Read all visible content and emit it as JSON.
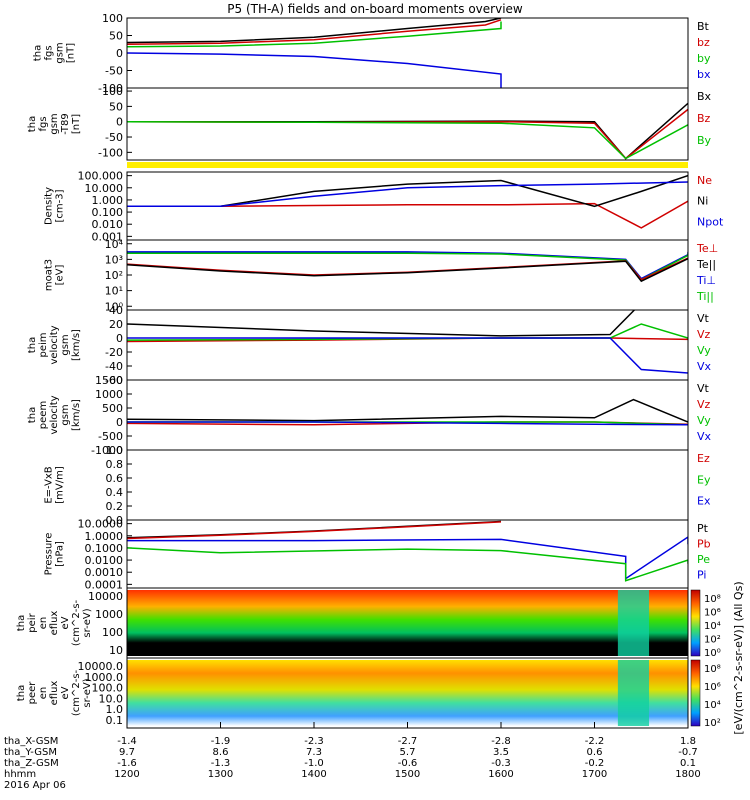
{
  "title": "P5 (TH-A) fields and on-board moments overview",
  "chart_data": {
    "type": "line",
    "title": "P5 (TH-A) fields and on-board moments overview",
    "x_axis": {
      "tick_labels_hhmm": [
        "1200",
        "1300",
        "1400",
        "1500",
        "1600",
        "1700",
        "1800"
      ],
      "date": "2016 Apr 06",
      "label_rows": [
        {
          "label": "tha_X-GSM",
          "values": [
            "-1.4",
            "-1.9",
            "-2.3",
            "-2.7",
            "-2.8",
            "-2.2",
            "1.8"
          ]
        },
        {
          "label": "tha_Y-GSM",
          "values": [
            "9.7",
            "8.6",
            "7.3",
            "5.7",
            "3.5",
            "0.6",
            "-0.7"
          ]
        },
        {
          "label": "tha_Z-GSM",
          "values": [
            "-1.6",
            "-1.3",
            "-1.0",
            "-0.6",
            "-0.3",
            "-0.2",
            "0.1"
          ]
        },
        {
          "label": "hhmm",
          "values": [
            "1200",
            "1300",
            "1400",
            "1500",
            "1600",
            "1700",
            "1800"
          ]
        }
      ]
    },
    "panels": [
      {
        "id": "fgs_gsm",
        "ylabel": [
          "tha",
          "fgs",
          "gsm",
          "[nT]"
        ],
        "ylim": [
          -100,
          100
        ],
        "yticks": [
          "100",
          "50",
          "0",
          "-50",
          "-100"
        ],
        "legend": [
          {
            "name": "Bt",
            "color": "#000000"
          },
          {
            "name": "bz",
            "color": "#d00000"
          },
          {
            "name": "by",
            "color": "#00c000"
          },
          {
            "name": "bx",
            "color": "#0000e0"
          }
        ],
        "series": [
          {
            "name": "Bt",
            "color": "#000000",
            "x": [
              1200,
              1300,
              1400,
              1500,
              1550,
              1600
            ],
            "y": [
              30,
              33,
              45,
              70,
              90,
              100
            ]
          },
          {
            "name": "bz",
            "color": "#d00000",
            "x": [
              1200,
              1300,
              1400,
              1500,
              1550,
              1600
            ],
            "y": [
              25,
              28,
              38,
              62,
              80,
              95
            ]
          },
          {
            "name": "by",
            "color": "#00c000",
            "x": [
              1200,
              1300,
              1400,
              1500,
              1560,
              1600
            ],
            "y": [
              18,
              20,
              28,
              48,
              70,
              90
            ]
          },
          {
            "name": "bx",
            "color": "#0000e0",
            "x": [
              1200,
              1300,
              1400,
              1500,
              1560,
              1600
            ],
            "y": [
              0,
              -3,
              -10,
              -30,
              -60,
              -100
            ]
          }
        ]
      },
      {
        "id": "fgs_gsm_t89",
        "ylabel": [
          "tha",
          "fgs",
          "gsm",
          "-T89",
          "[nT]"
        ],
        "ylim": [
          -125,
          110
        ],
        "yticks": [
          "100",
          "50",
          "0",
          "-50",
          "-100"
        ],
        "legend": [
          {
            "name": "Bx",
            "color": "#000000"
          },
          {
            "name": "Bz",
            "color": "#d00000"
          },
          {
            "name": "By",
            "color": "#00c000"
          }
        ],
        "series": [
          {
            "name": "Bx",
            "color": "#000000",
            "x": [
              1200,
              1400,
              1600,
              1700,
              1720,
              1760
            ],
            "y": [
              0,
              0,
              2,
              0,
              -120,
              60
            ]
          },
          {
            "name": "Bz",
            "color": "#d00000",
            "x": [
              1200,
              1400,
              1600,
              1700,
              1720,
              1760
            ],
            "y": [
              0,
              -2,
              0,
              -5,
              -120,
              40
            ]
          },
          {
            "name": "By",
            "color": "#00c000",
            "x": [
              1200,
              1400,
              1600,
              1700,
              1720,
              1760
            ],
            "y": [
              0,
              -2,
              -5,
              -20,
              -120,
              -10
            ]
          }
        ]
      },
      {
        "id": "density",
        "ylabel": [
          "Density",
          "[cm-3]"
        ],
        "yscale": "log",
        "yticks": [
          "100.000",
          "10.000",
          "1.000",
          "0.100",
          "0.010",
          "0.001"
        ],
        "legend": [
          {
            "name": "Ne",
            "color": "#d00000"
          },
          {
            "name": "Ni",
            "color": "#000000"
          },
          {
            "name": "Npot",
            "color": "#0000e0"
          }
        ],
        "series": [
          {
            "name": "Ne",
            "color": "#d00000",
            "x": [
              1200,
              1300,
              1400,
              1500,
              1600,
              1700,
              1730,
              1800
            ],
            "y": [
              0.3,
              0.3,
              0.35,
              0.4,
              0.4,
              0.5,
              0.005,
              0.8
            ]
          },
          {
            "name": "Ni",
            "color": "#000000",
            "x": [
              1200,
              1300,
              1400,
              1500,
              1600,
              1700,
              1730,
              1800
            ],
            "y": [
              0.3,
              0.3,
              5,
              20,
              40,
              0.3,
              5,
              100
            ]
          },
          {
            "name": "Npot",
            "color": "#0000e0",
            "x": [
              1200,
              1300,
              1400,
              1500,
              1600,
              1700,
              1800
            ],
            "y": [
              0.3,
              0.3,
              2,
              10,
              15,
              20,
              30
            ]
          }
        ]
      },
      {
        "id": "temperature",
        "ylabel": [
          "moat3",
          "[eV]"
        ],
        "yscale": "log",
        "yticks": [
          "10⁴",
          "10³",
          "10²",
          "10¹",
          "10⁰"
        ],
        "legend": [
          {
            "name": "Te⊥",
            "color": "#d00000"
          },
          {
            "name": "Te||",
            "color": "#000000"
          },
          {
            "name": "Ti⊥",
            "color": "#0000e0"
          },
          {
            "name": "Ti||",
            "color": "#00c000"
          }
        ],
        "series": [
          {
            "name": "Ti⊥",
            "color": "#0000e0",
            "x": [
              1200,
              1500,
              1600,
              1680,
              1730,
              1760,
              1800
            ],
            "y": [
              3000,
              3000,
              2500,
              1000,
              60,
              2000,
              3000
            ]
          },
          {
            "name": "Ti||",
            "color": "#00c000",
            "x": [
              1200,
              1500,
              1600,
              1680,
              1730,
              1760,
              1800
            ],
            "y": [
              2500,
              2500,
              2200,
              900,
              50,
              1800,
              2500
            ]
          },
          {
            "name": "Te⊥",
            "color": "#d00000",
            "x": [
              1200,
              1300,
              1400,
              1500,
              1600,
              1680,
              1730,
              1800
            ],
            "y": [
              500,
              200,
              100,
              150,
              300,
              800,
              50,
              1200
            ]
          },
          {
            "name": "Te||",
            "color": "#000000",
            "x": [
              1200,
              1300,
              1400,
              1500,
              1600,
              1680,
              1730,
              1800
            ],
            "y": [
              450,
              180,
              90,
              140,
              280,
              750,
              40,
              1100
            ]
          }
        ]
      },
      {
        "id": "peim_velocity",
        "ylabel": [
          "tha",
          "peim",
          "velocity",
          "gsm",
          "[km/s]"
        ],
        "ylim": [
          -60,
          40
        ],
        "yticks": [
          "40",
          "20",
          "0",
          "-20",
          "-40",
          "-60"
        ],
        "legend": [
          {
            "name": "Vt",
            "color": "#000000"
          },
          {
            "name": "Vz",
            "color": "#d00000"
          },
          {
            "name": "Vy",
            "color": "#00c000"
          },
          {
            "name": "Vx",
            "color": "#0000e0"
          }
        ],
        "series": [
          {
            "name": "Vt",
            "color": "#000000",
            "x": [
              1200,
              1400,
              1600,
              1710,
              1730,
              1800
            ],
            "y": [
              20,
              10,
              3,
              5,
              50,
              45
            ]
          },
          {
            "name": "Vz",
            "color": "#d00000",
            "x": [
              1200,
              1400,
              1600,
              1710,
              1800
            ],
            "y": [
              -5,
              -3,
              0,
              0,
              -2
            ]
          },
          {
            "name": "Vy",
            "color": "#00c000",
            "x": [
              1200,
              1400,
              1600,
              1710,
              1730,
              1800
            ],
            "y": [
              -3,
              -2,
              0,
              0,
              20,
              0
            ]
          },
          {
            "name": "Vx",
            "color": "#0000e0",
            "x": [
              1200,
              1400,
              1600,
              1710,
              1730,
              1800
            ],
            "y": [
              0,
              0,
              0,
              0,
              -45,
              -50
            ]
          }
        ]
      },
      {
        "id": "peem_velocity",
        "ylabel": [
          "tha",
          "peem",
          "velocity",
          "gsm",
          "[km/s]"
        ],
        "ylim": [
          -1000,
          1500
        ],
        "yticks": [
          "1500",
          "1000",
          "500",
          "0",
          "-500",
          "-1000"
        ],
        "legend": [
          {
            "name": "Vt",
            "color": "#000000"
          },
          {
            "name": "Vz",
            "color": "#d00000"
          },
          {
            "name": "Vy",
            "color": "#00c000"
          },
          {
            "name": "Vx",
            "color": "#0000e0"
          }
        ],
        "series": [
          {
            "name": "Vt",
            "color": "#000000",
            "x": [
              1200,
              1400,
              1600,
              1700,
              1725,
              1800
            ],
            "y": [
              100,
              50,
              200,
              150,
              800,
              0
            ]
          },
          {
            "name": "Vz",
            "color": "#d00000",
            "x": [
              1200,
              1400,
              1600,
              1700,
              1800
            ],
            "y": [
              -50,
              -100,
              0,
              0,
              -80
            ]
          },
          {
            "name": "Vy",
            "color": "#00c000",
            "x": [
              1200,
              1400,
              1600,
              1700,
              1800
            ],
            "y": [
              0,
              0,
              0,
              0,
              -100
            ]
          },
          {
            "name": "Vx",
            "color": "#0000e0",
            "x": [
              1200,
              1400,
              1600,
              1700,
              1800
            ],
            "y": [
              0,
              0,
              -50,
              -80,
              -100
            ]
          }
        ]
      },
      {
        "id": "efield",
        "ylabel": [
          "E=-VxB",
          "[mV/m]"
        ],
        "ylim": [
          0,
          1
        ],
        "yticks": [
          "1.0",
          "0.8",
          "0.6",
          "0.4",
          "0.2",
          "0.0"
        ],
        "legend": [
          {
            "name": "Ez",
            "color": "#d00000"
          },
          {
            "name": "Ey",
            "color": "#00c000"
          },
          {
            "name": "Ex",
            "color": "#0000e0"
          }
        ],
        "series": []
      },
      {
        "id": "pressure",
        "ylabel": [
          "Pressure",
          "[nPa]"
        ],
        "yscale": "log",
        "yticks": [
          "10.0000",
          "1.0000",
          "0.1000",
          "0.0100",
          "0.0010",
          "0.0001"
        ],
        "legend": [
          {
            "name": "Pt",
            "color": "#000000"
          },
          {
            "name": "Pb",
            "color": "#d00000"
          },
          {
            "name": "Pe",
            "color": "#00c000"
          },
          {
            "name": "Pi",
            "color": "#0000e0"
          }
        ],
        "series": [
          {
            "name": "Pt",
            "color": "#000000",
            "x": [
              1200,
              1300,
              1400,
              1500,
              1600
            ],
            "y": [
              0.7,
              1.2,
              2.5,
              6,
              15
            ]
          },
          {
            "name": "Pb",
            "color": "#d00000",
            "x": [
              1200,
              1300,
              1400,
              1500,
              1600
            ],
            "y": [
              0.6,
              1.1,
              2.3,
              5.5,
              14
            ]
          },
          {
            "name": "Pi",
            "color": "#0000e0",
            "x": [
              1200,
              1400,
              1600,
              1680,
              1720,
              1760,
              1800
            ],
            "y": [
              0.4,
              0.4,
              0.5,
              0.02,
              0.0003,
              0.8,
              0.2
            ]
          },
          {
            "name": "Pe",
            "color": "#00c000",
            "x": [
              1200,
              1300,
              1500,
              1600,
              1680,
              1720,
              1760,
              1800
            ],
            "y": [
              0.1,
              0.04,
              0.08,
              0.06,
              0.005,
              0.0002,
              0.01,
              0.005
            ]
          }
        ]
      },
      {
        "id": "peir_en_eflux",
        "ylabel": [
          "tha",
          "peir",
          "en",
          "eflux",
          "eV",
          "(cm^2-s-",
          "sr-eV)"
        ],
        "type": "heatmap",
        "yscale": "log",
        "yticks": [
          "10000",
          "1000",
          "100",
          "10"
        ]
      },
      {
        "id": "peer_en_eflux",
        "ylabel": [
          "tha",
          "peer",
          "en",
          "eflux",
          "eV",
          "(cm^2-s-",
          "sr-eV)"
        ],
        "type": "heatmap",
        "yscale": "log",
        "yticks": [
          "10000.0",
          "1000.0",
          "100.0",
          "10.0",
          "1.0",
          "0.1"
        ]
      }
    ],
    "colorbars": [
      {
        "label": "[eV/(cm^2-s-sr-eV)] (All Qs)",
        "ticks": [
          "10⁸",
          "10⁶",
          "10⁴",
          "10²",
          "10⁰"
        ]
      },
      {
        "label": "[eV/(cm^2-s-sr-eV)] (All Qs)",
        "ticks": [
          "10⁸",
          "10⁶",
          "10⁴",
          "10²"
        ]
      }
    ]
  }
}
